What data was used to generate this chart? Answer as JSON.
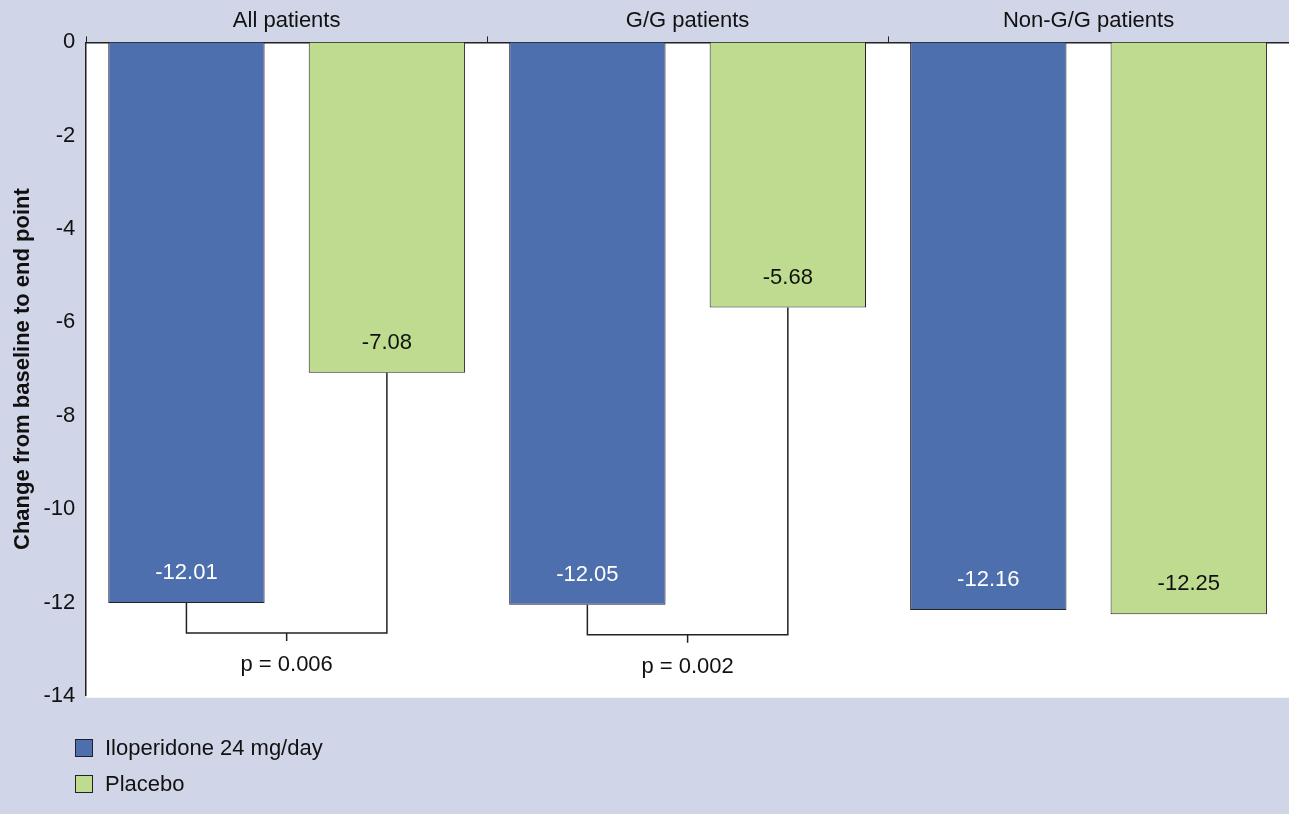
{
  "chart_data": {
    "type": "bar",
    "categories": [
      "All patients",
      "G/G patients",
      "Non-G/G patients"
    ],
    "ylabel": "Change from baseline to end point",
    "series": [
      {
        "name": "Iloperidone 24 mg/day",
        "color": "#4e6fad",
        "values": [
          -12.01,
          -12.05,
          -12.16
        ]
      },
      {
        "name": "Placebo",
        "color": "#bedb8f",
        "values": [
          -7.08,
          -5.68,
          -12.25
        ]
      }
    ],
    "ylim": [
      -14,
      0
    ],
    "yticks": [
      0,
      -2,
      -4,
      -6,
      -8,
      -10,
      -12,
      -14
    ],
    "data_labels": true,
    "grid": false,
    "legend": "bottom left",
    "annotations": [
      "p = 0.006",
      "p = 0.002"
    ]
  }
}
